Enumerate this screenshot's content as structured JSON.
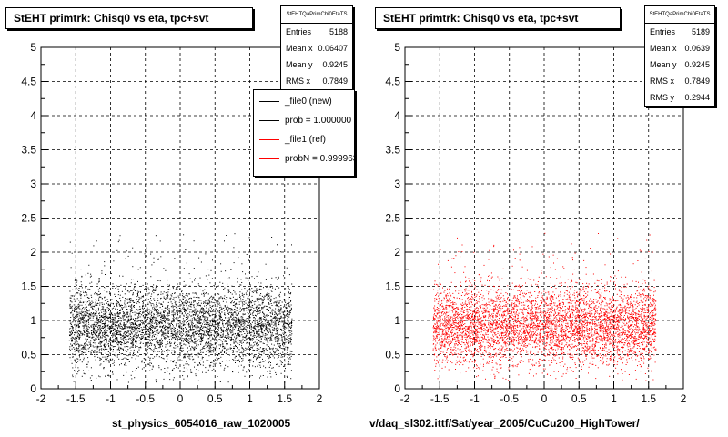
{
  "chart_data": [
    {
      "type": "scatter",
      "title": "StEHT primtrk: Chisq0 vs eta, tpc+svt",
      "xlabel": "st_physics_6054016_raw_1020005",
      "ylabel": "",
      "xlim": [
        -2,
        2
      ],
      "ylim": [
        0,
        5
      ],
      "xticks": [
        "-2",
        "-1.5",
        "-1",
        "-0.5",
        "0",
        "0.5",
        "1",
        "1.5",
        "2"
      ],
      "yticks": [
        "0",
        "0.5",
        "1",
        "1.5",
        "2",
        "2.5",
        "3",
        "3.5",
        "4",
        "4.5",
        "5"
      ],
      "grid": true,
      "marker_color": "#000000",
      "stats": {
        "header": "StEHTQaPrimChi0EtaTS",
        "rows": [
          {
            "label": "Entries",
            "value": "5188"
          },
          {
            "label": "Mean x",
            "value": "0.06407"
          },
          {
            "label": "Mean y",
            "value": "0.9245"
          },
          {
            "label": "RMS x",
            "value": "0.7849"
          }
        ]
      },
      "legend": {
        "placement": "top-right",
        "entries": [
          {
            "label": "_file0 (new)",
            "color": "#000000"
          },
          {
            "label": "prob = 1.000000",
            "color": "#000000"
          },
          {
            "label": "_file1 (ref)",
            "color": "#ff0000"
          },
          {
            "label": "probN = 0.999963",
            "color": "#ff0000"
          }
        ]
      },
      "distribution": {
        "entries": 5188,
        "x_range": [
          -1.6,
          1.6
        ],
        "y_center": 0.9245,
        "y_spread": 0.2944,
        "y_range": [
          0.1,
          2.3
        ]
      }
    },
    {
      "type": "scatter",
      "title": "StEHT primtrk: Chisq0 vs eta, tpc+svt",
      "xlabel": "v/daq_sl302.ittf/Sat/year_2005/CuCu200_HighTower/",
      "ylabel": "",
      "xlim": [
        -2,
        2
      ],
      "ylim": [
        0,
        5
      ],
      "xticks": [
        "-2",
        "-1.5",
        "-1",
        "-0.5",
        "0",
        "0.5",
        "1",
        "1.5",
        "2"
      ],
      "yticks": [
        "0",
        "0.5",
        "1",
        "1.5",
        "2",
        "2.5",
        "3",
        "3.5",
        "4",
        "4.5",
        "5"
      ],
      "grid": true,
      "marker_color": "#ff0000",
      "stats": {
        "header": "StEHTQaPrimChi0EtaTS",
        "rows": [
          {
            "label": "Entries",
            "value": "5189"
          },
          {
            "label": "Mean x",
            "value": "0.0639"
          },
          {
            "label": "Mean y",
            "value": "0.9245"
          },
          {
            "label": "RMS x",
            "value": "0.7849"
          },
          {
            "label": "RMS y",
            "value": "0.2944"
          }
        ]
      },
      "distribution": {
        "entries": 5189,
        "x_range": [
          -1.6,
          1.6
        ],
        "y_center": 0.9245,
        "y_spread": 0.2944,
        "y_range": [
          0.1,
          2.3
        ]
      }
    }
  ]
}
